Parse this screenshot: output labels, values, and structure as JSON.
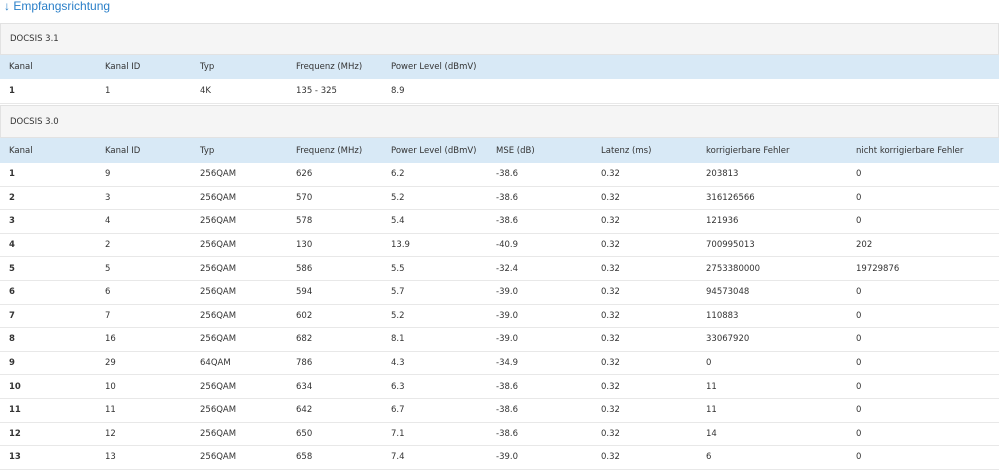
{
  "header": {
    "title": "↓ Empfangsrichtung"
  },
  "sections": [
    {
      "title": "DOCSIS 3.1",
      "columns": [
        "Kanal",
        "Kanal ID",
        "Typ",
        "Frequenz (MHz)",
        "Power Level (dBmV)"
      ],
      "rows": [
        [
          "1",
          "1",
          "4K",
          "135 - 325",
          "8.9"
        ]
      ]
    },
    {
      "title": "DOCSIS 3.0",
      "columns": [
        "Kanal",
        "Kanal ID",
        "Typ",
        "Frequenz (MHz)",
        "Power Level (dBmV)",
        "MSE (dB)",
        "Latenz (ms)",
        "korrigierbare Fehler",
        "nicht korrigierbare Fehler"
      ],
      "rows": [
        [
          "1",
          "9",
          "256QAM",
          "626",
          "6.2",
          "-38.6",
          "0.32",
          "203813",
          "0"
        ],
        [
          "2",
          "3",
          "256QAM",
          "570",
          "5.2",
          "-38.6",
          "0.32",
          "316126566",
          "0"
        ],
        [
          "3",
          "4",
          "256QAM",
          "578",
          "5.4",
          "-38.6",
          "0.32",
          "121936",
          "0"
        ],
        [
          "4",
          "2",
          "256QAM",
          "130",
          "13.9",
          "-40.9",
          "0.32",
          "700995013",
          "202"
        ],
        [
          "5",
          "5",
          "256QAM",
          "586",
          "5.5",
          "-32.4",
          "0.32",
          "2753380000",
          "19729876"
        ],
        [
          "6",
          "6",
          "256QAM",
          "594",
          "5.7",
          "-39.0",
          "0.32",
          "94573048",
          "0"
        ],
        [
          "7",
          "7",
          "256QAM",
          "602",
          "5.2",
          "-39.0",
          "0.32",
          "110883",
          "0"
        ],
        [
          "8",
          "16",
          "256QAM",
          "682",
          "8.1",
          "-39.0",
          "0.32",
          "33067920",
          "0"
        ],
        [
          "9",
          "29",
          "64QAM",
          "786",
          "4.3",
          "-34.9",
          "0.32",
          "0",
          "0"
        ],
        [
          "10",
          "10",
          "256QAM",
          "634",
          "6.3",
          "-38.6",
          "0.32",
          "11",
          "0"
        ],
        [
          "11",
          "11",
          "256QAM",
          "642",
          "6.7",
          "-38.6",
          "0.32",
          "11",
          "0"
        ],
        [
          "12",
          "12",
          "256QAM",
          "650",
          "7.1",
          "-38.6",
          "0.32",
          "14",
          "0"
        ],
        [
          "13",
          "13",
          "256QAM",
          "658",
          "7.4",
          "-39.0",
          "0.32",
          "6",
          "0"
        ]
      ]
    }
  ]
}
